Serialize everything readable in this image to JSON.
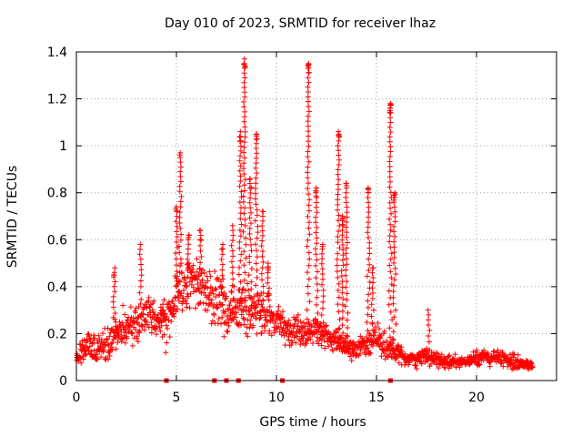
{
  "chart_data": {
    "type": "scatter",
    "title": "Day 010 of 2023, SRMTID for receiver lhaz",
    "xlabel": "GPS time / hours",
    "ylabel": "SRMTID / TECUs",
    "xlim": [
      0,
      24
    ],
    "ylim": [
      0,
      1.4
    ],
    "xticks": [
      "0",
      "5",
      "10",
      "15",
      "20"
    ],
    "xtick_values": [
      0,
      5,
      10,
      15,
      20
    ],
    "yticks": [
      "0",
      "0.2",
      "0.4",
      "0.6",
      "0.8",
      "1",
      "1.2",
      "1.4"
    ],
    "ytick_values": [
      0,
      0.2,
      0.4,
      0.6,
      0.8,
      1.0,
      1.2,
      1.4
    ],
    "grid": true,
    "marker": "plus",
    "marker_color": "#ff0000",
    "envelope": {
      "description": "approximate median (mid) and spread of the dense point cloud at each hour",
      "x": [
        0.0,
        0.5,
        1.0,
        1.5,
        2.0,
        2.5,
        3.0,
        3.5,
        4.0,
        4.5,
        5.0,
        5.5,
        6.0,
        6.5,
        7.0,
        7.5,
        8.0,
        8.5,
        9.0,
        9.5,
        10.0,
        10.5,
        11.0,
        11.5,
        12.0,
        12.5,
        13.0,
        13.5,
        14.0,
        14.5,
        15.0,
        15.5,
        16.0,
        16.5,
        17.0,
        17.5,
        18.0,
        18.5,
        19.0,
        19.5,
        20.0,
        20.5,
        21.0,
        21.5,
        22.0,
        22.5,
        22.8
      ],
      "mid": [
        0.09,
        0.14,
        0.14,
        0.16,
        0.2,
        0.22,
        0.26,
        0.29,
        0.28,
        0.24,
        0.36,
        0.4,
        0.42,
        0.38,
        0.36,
        0.3,
        0.3,
        0.3,
        0.32,
        0.28,
        0.26,
        0.22,
        0.2,
        0.2,
        0.24,
        0.18,
        0.18,
        0.14,
        0.13,
        0.16,
        0.18,
        0.14,
        0.12,
        0.09,
        0.09,
        0.1,
        0.09,
        0.08,
        0.08,
        0.08,
        0.09,
        0.1,
        0.1,
        0.09,
        0.08,
        0.07,
        0.06
      ],
      "spread": [
        0.03,
        0.05,
        0.05,
        0.06,
        0.07,
        0.08,
        0.08,
        0.08,
        0.08,
        0.08,
        0.1,
        0.1,
        0.1,
        0.1,
        0.1,
        0.1,
        0.1,
        0.1,
        0.1,
        0.08,
        0.07,
        0.06,
        0.06,
        0.06,
        0.07,
        0.05,
        0.05,
        0.04,
        0.04,
        0.05,
        0.06,
        0.05,
        0.04,
        0.03,
        0.03,
        0.03,
        0.03,
        0.03,
        0.02,
        0.02,
        0.03,
        0.03,
        0.03,
        0.03,
        0.03,
        0.02,
        0.02
      ]
    },
    "spikes": [
      {
        "x": 1.9,
        "y": 0.48
      },
      {
        "x": 3.2,
        "y": 0.58
      },
      {
        "x": 4.3,
        "y": 0.3
      },
      {
        "x": 5.0,
        "y": 0.74
      },
      {
        "x": 5.2,
        "y": 0.97
      },
      {
        "x": 5.6,
        "y": 0.62
      },
      {
        "x": 6.2,
        "y": 0.64
      },
      {
        "x": 7.3,
        "y": 0.58
      },
      {
        "x": 7.8,
        "y": 0.66
      },
      {
        "x": 8.2,
        "y": 1.06
      },
      {
        "x": 8.4,
        "y": 1.37
      },
      {
        "x": 8.7,
        "y": 0.86
      },
      {
        "x": 9.0,
        "y": 1.05
      },
      {
        "x": 9.3,
        "y": 0.72
      },
      {
        "x": 9.6,
        "y": 0.5
      },
      {
        "x": 11.6,
        "y": 1.35
      },
      {
        "x": 12.0,
        "y": 0.82
      },
      {
        "x": 12.3,
        "y": 0.58
      },
      {
        "x": 13.1,
        "y": 1.06
      },
      {
        "x": 13.3,
        "y": 0.7
      },
      {
        "x": 13.5,
        "y": 0.84
      },
      {
        "x": 14.6,
        "y": 0.82
      },
      {
        "x": 14.8,
        "y": 0.48
      },
      {
        "x": 15.7,
        "y": 1.18
      },
      {
        "x": 15.9,
        "y": 0.8
      },
      {
        "x": 17.6,
        "y": 0.3
      }
    ],
    "axis_markers": {
      "description": "small filled squares sitting on the x-axis",
      "x": [
        4.5,
        6.9,
        7.5,
        8.1,
        10.3,
        15.7
      ]
    }
  }
}
